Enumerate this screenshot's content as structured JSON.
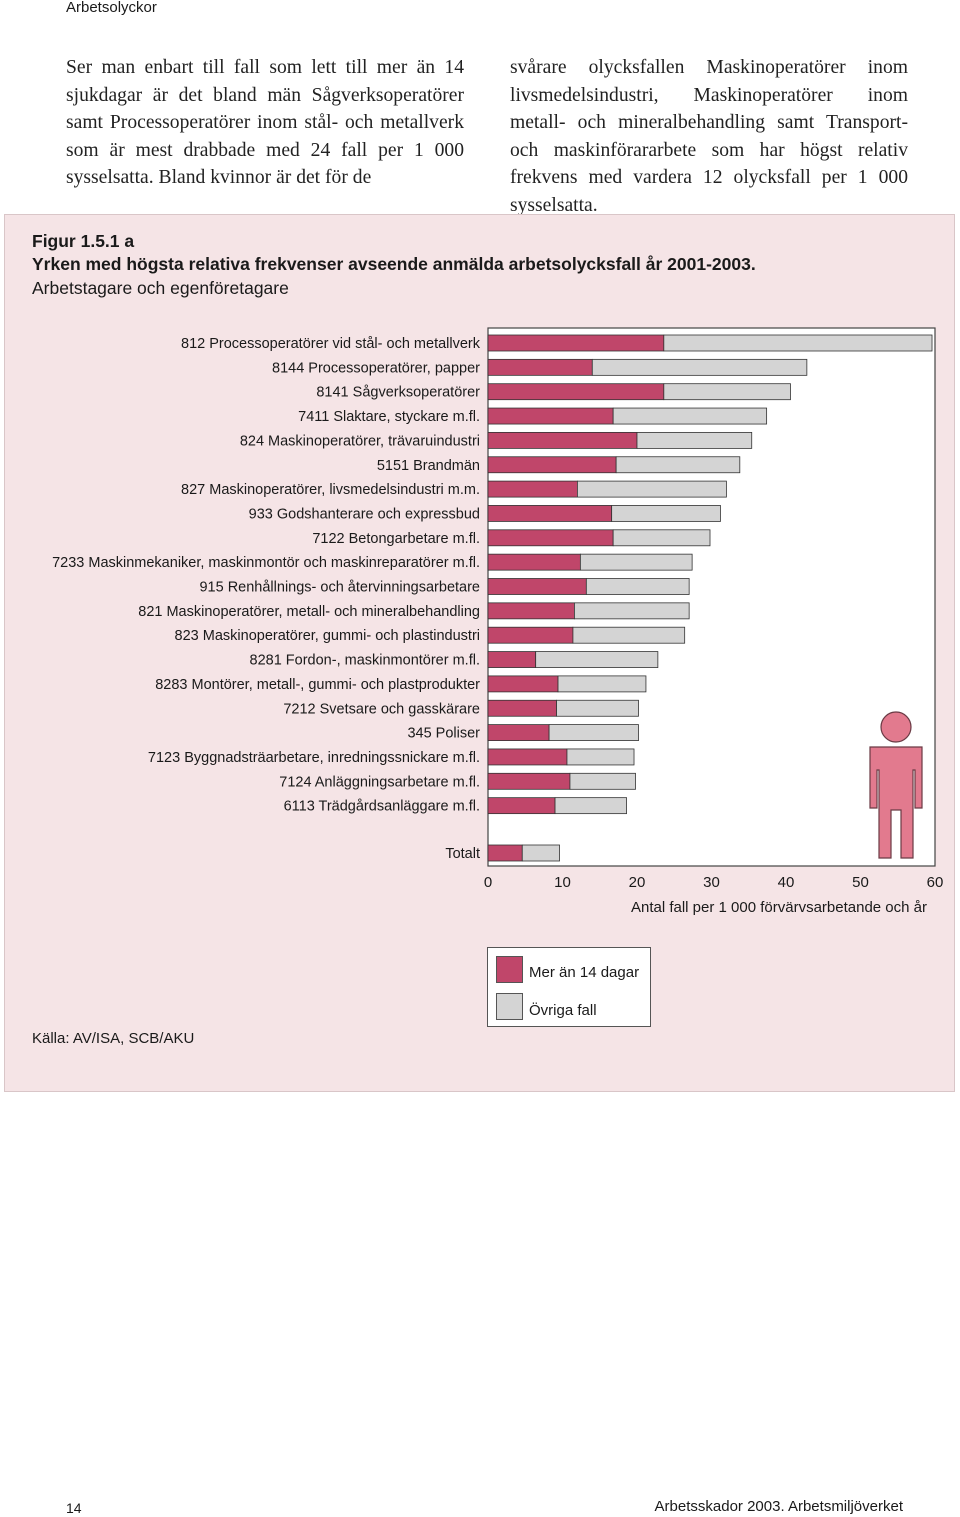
{
  "header": {
    "running_head": "Arbetsolyckor"
  },
  "body_text": {
    "left": "Ser man enbart till fall som lett till mer än 14 sjukdagar är det bland män Sågverksoperatörer samt Processoperatörer inom stål- och metallverk som är mest drabbade med 24 fall per 1 000 sysselsatta. Bland kvinnor är det för de",
    "right": "svårare olycksfallen Maskinoperatörer inom livsmedelsindustri, Maskinoperatörer inom metall- och mineralbehandling samt Transport- och maskinförararbete som har högst relativ frekvens med vardera 12 olycksfall per 1 000 sysselsatta."
  },
  "figure": {
    "number": "Figur 1.5.1 a",
    "title": "Yrken med högsta relativa frekvenser avseende anmälda arbetsolycksfall år 2001-2003.",
    "subtitle": "Arbetstagare och egenföretagare",
    "source": "Källa: AV/ISA, SCB/AKU",
    "figure_icon": "person-male-icon"
  },
  "chart_data": {
    "type": "bar",
    "orientation": "horizontal",
    "stacked": true,
    "categories": [
      "812 Processoperatörer vid stål- och metallverk",
      "8144 Processoperatörer, papper",
      "8141 Sågverksoperatörer",
      "7411 Slaktare, styckare m.fl.",
      "824 Maskinoperatörer, trävaruindustri",
      "5151 Brandmän",
      "827 Maskinoperatörer, livsmedelsindustri m.m.",
      "933 Godshanterare och expressbud",
      "7122 Betongarbetare m.fl.",
      "7233 Maskinmekaniker, maskinmontör och maskinreparatörer m.fl.",
      "915 Renhållnings- och återvinningsarbetare",
      "821 Maskinoperatörer, metall- och mineralbehandling",
      "823 Maskinoperatörer, gummi- och plastindustri",
      "8281 Fordon-, maskinmontörer m.fl.",
      "8283 Montörer, metall-, gummi- och plastprodukter",
      "7212 Svetsare och gasskärare",
      "345 Poliser",
      "7123 Byggnadsträarbetare, inredningssnickare m.fl.",
      "7124 Anläggningsarbetare m.fl.",
      "6113 Trädgårdsanläggare m.fl."
    ],
    "series": [
      {
        "name": "Mer än 14 dagar",
        "color": "#c0466a",
        "values": [
          23.6,
          14.0,
          23.6,
          16.8,
          20.0,
          17.2,
          12.0,
          16.6,
          16.8,
          12.4,
          13.2,
          11.6,
          11.4,
          6.4,
          9.4,
          9.2,
          8.2,
          10.6,
          11.0,
          9.0
        ]
      },
      {
        "name": "Övriga fall",
        "color": "#d4d4d4",
        "values": [
          36.0,
          28.8,
          17.0,
          20.6,
          15.4,
          16.6,
          20.0,
          14.6,
          13.0,
          15.0,
          13.8,
          15.4,
          15.0,
          16.4,
          11.8,
          11.0,
          12.0,
          9.0,
          8.8,
          9.6
        ]
      }
    ],
    "total": {
      "label": "Totalt",
      "values": [
        4.6,
        5.0
      ]
    },
    "xlim": [
      0,
      60
    ],
    "xticks": [
      0,
      10,
      20,
      30,
      40,
      50,
      60
    ],
    "xlabel": "Antal fall per 1 000 förvärvsarbetande och år",
    "legend": [
      "Mer än 14 dagar",
      "Övriga fall"
    ],
    "legend_position": "bottom-center",
    "grid": false
  },
  "footer": {
    "page_number": "14",
    "publication": "Arbetsskador 2003. Arbetsmiljöverket"
  }
}
